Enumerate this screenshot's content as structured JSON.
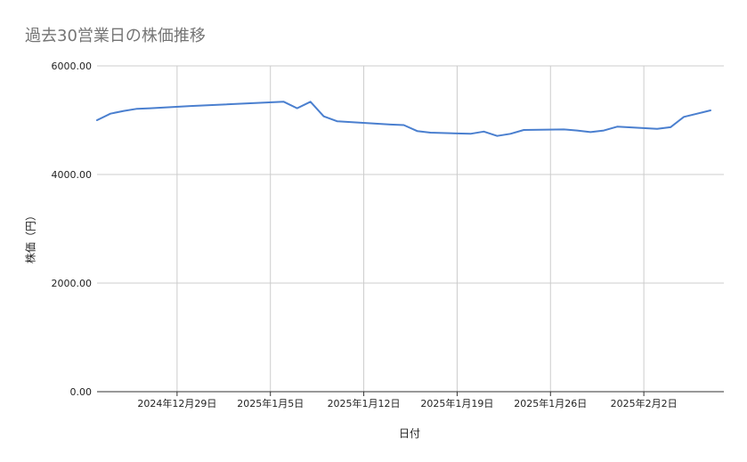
{
  "chart_data": {
    "type": "line",
    "title": "過去30営業日の株価推移",
    "xlabel": "日付",
    "ylabel": "株価（円）",
    "ylim": [
      0,
      6000
    ],
    "y_ticks": [
      "0.00",
      "2000.00",
      "4000.00",
      "6000.00"
    ],
    "y_tick_values": [
      0,
      2000,
      4000,
      6000
    ],
    "x_ticks": [
      "2024年12月29日",
      "2025年1月5日",
      "2025年1月12日",
      "2025年1月19日",
      "2025年1月26日",
      "2025年2月2日"
    ],
    "x_tick_dates": [
      "2024-12-29",
      "2025-01-05",
      "2025-01-12",
      "2025-01-19",
      "2025-01-26",
      "2025-02-02"
    ],
    "xlim": [
      "2024-12-23",
      "2025-02-08"
    ],
    "grid": true,
    "line_color": "#4a7fcf",
    "series": [
      {
        "x": [
          "2024-12-23",
          "2024-12-24",
          "2024-12-25",
          "2024-12-26",
          "2024-12-27",
          "2024-12-30",
          "2025-01-06",
          "2025-01-07",
          "2025-01-08",
          "2025-01-09",
          "2025-01-10",
          "2025-01-14",
          "2025-01-15",
          "2025-01-16",
          "2025-01-17",
          "2025-01-20",
          "2025-01-21",
          "2025-01-22",
          "2025-01-23",
          "2025-01-24",
          "2025-01-27",
          "2025-01-28",
          "2025-01-29",
          "2025-01-30",
          "2025-01-31",
          "2025-02-03",
          "2025-02-04",
          "2025-02-05",
          "2025-02-06",
          "2025-02-07"
        ],
        "y": [
          5000,
          5120,
          5170,
          5210,
          5220,
          5260,
          5340,
          5220,
          5340,
          5070,
          4980,
          4920,
          4910,
          4800,
          4770,
          4750,
          4790,
          4710,
          4750,
          4820,
          4830,
          4810,
          4780,
          4810,
          4880,
          4840,
          4870,
          5060,
          5120,
          5180
        ]
      }
    ]
  }
}
